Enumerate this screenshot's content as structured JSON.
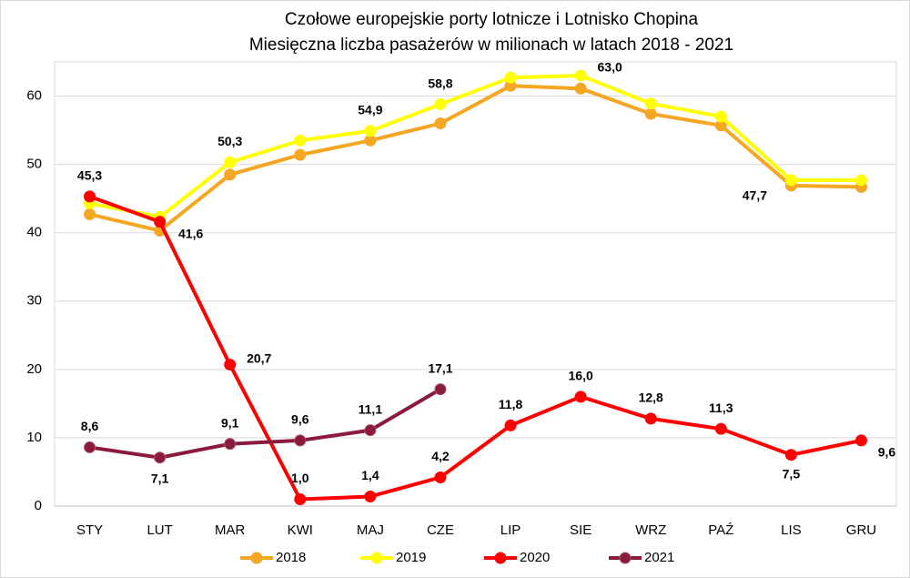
{
  "chart_data": {
    "type": "line",
    "title": "Czołowe europejskie porty lotnicze i Lotnisko Chopina",
    "subtitle": "Miesięczna liczba pasażerów w milionach w latach 2018 - 2021",
    "categories": [
      "STY",
      "LUT",
      "MAR",
      "KWI",
      "MAJ",
      "CZE",
      "LIP",
      "SIE",
      "WRZ",
      "PAŹ",
      "LIS",
      "GRU"
    ],
    "ylim": [
      0,
      65
    ],
    "yticks": [
      0,
      10,
      20,
      30,
      40,
      50,
      60
    ],
    "grid": true,
    "legend": "bottom",
    "series": [
      {
        "name": "2018",
        "color": "#f5a623",
        "values": [
          42.7,
          40.3,
          48.5,
          51.4,
          53.5,
          56.0,
          61.5,
          61.1,
          57.4,
          55.7,
          46.9,
          46.7
        ]
      },
      {
        "name": "2019",
        "color": "#ffff00",
        "values": [
          44.3,
          42.3,
          50.3,
          53.5,
          54.9,
          58.8,
          62.7,
          63.0,
          58.9,
          57.0,
          47.7,
          47.7
        ],
        "value_labels": [
          null,
          null,
          "50,3",
          null,
          "54,9",
          "58,8",
          null,
          "63,0",
          null,
          null,
          "47,7",
          null
        ]
      },
      {
        "name": "2020",
        "color": "#ff0000",
        "values": [
          45.3,
          41.6,
          20.7,
          1.0,
          1.4,
          4.2,
          11.8,
          16.0,
          12.8,
          11.3,
          7.5,
          9.6
        ],
        "value_labels": [
          "45,3",
          "41,6",
          "20,7",
          "1,0",
          "1,4",
          "4,2",
          "11,8",
          "16,0",
          "12,8",
          "11,3",
          "7,5",
          "9,6"
        ]
      },
      {
        "name": "2021",
        "color": "#8b1a3c",
        "values": [
          8.6,
          7.1,
          9.1,
          9.6,
          11.1,
          17.1,
          null,
          null,
          null,
          null,
          null,
          null
        ],
        "value_labels": [
          "8,6",
          "7,1",
          "9,1",
          "9,6",
          "11,1",
          "17,1",
          null,
          null,
          null,
          null,
          null,
          null
        ]
      }
    ]
  }
}
